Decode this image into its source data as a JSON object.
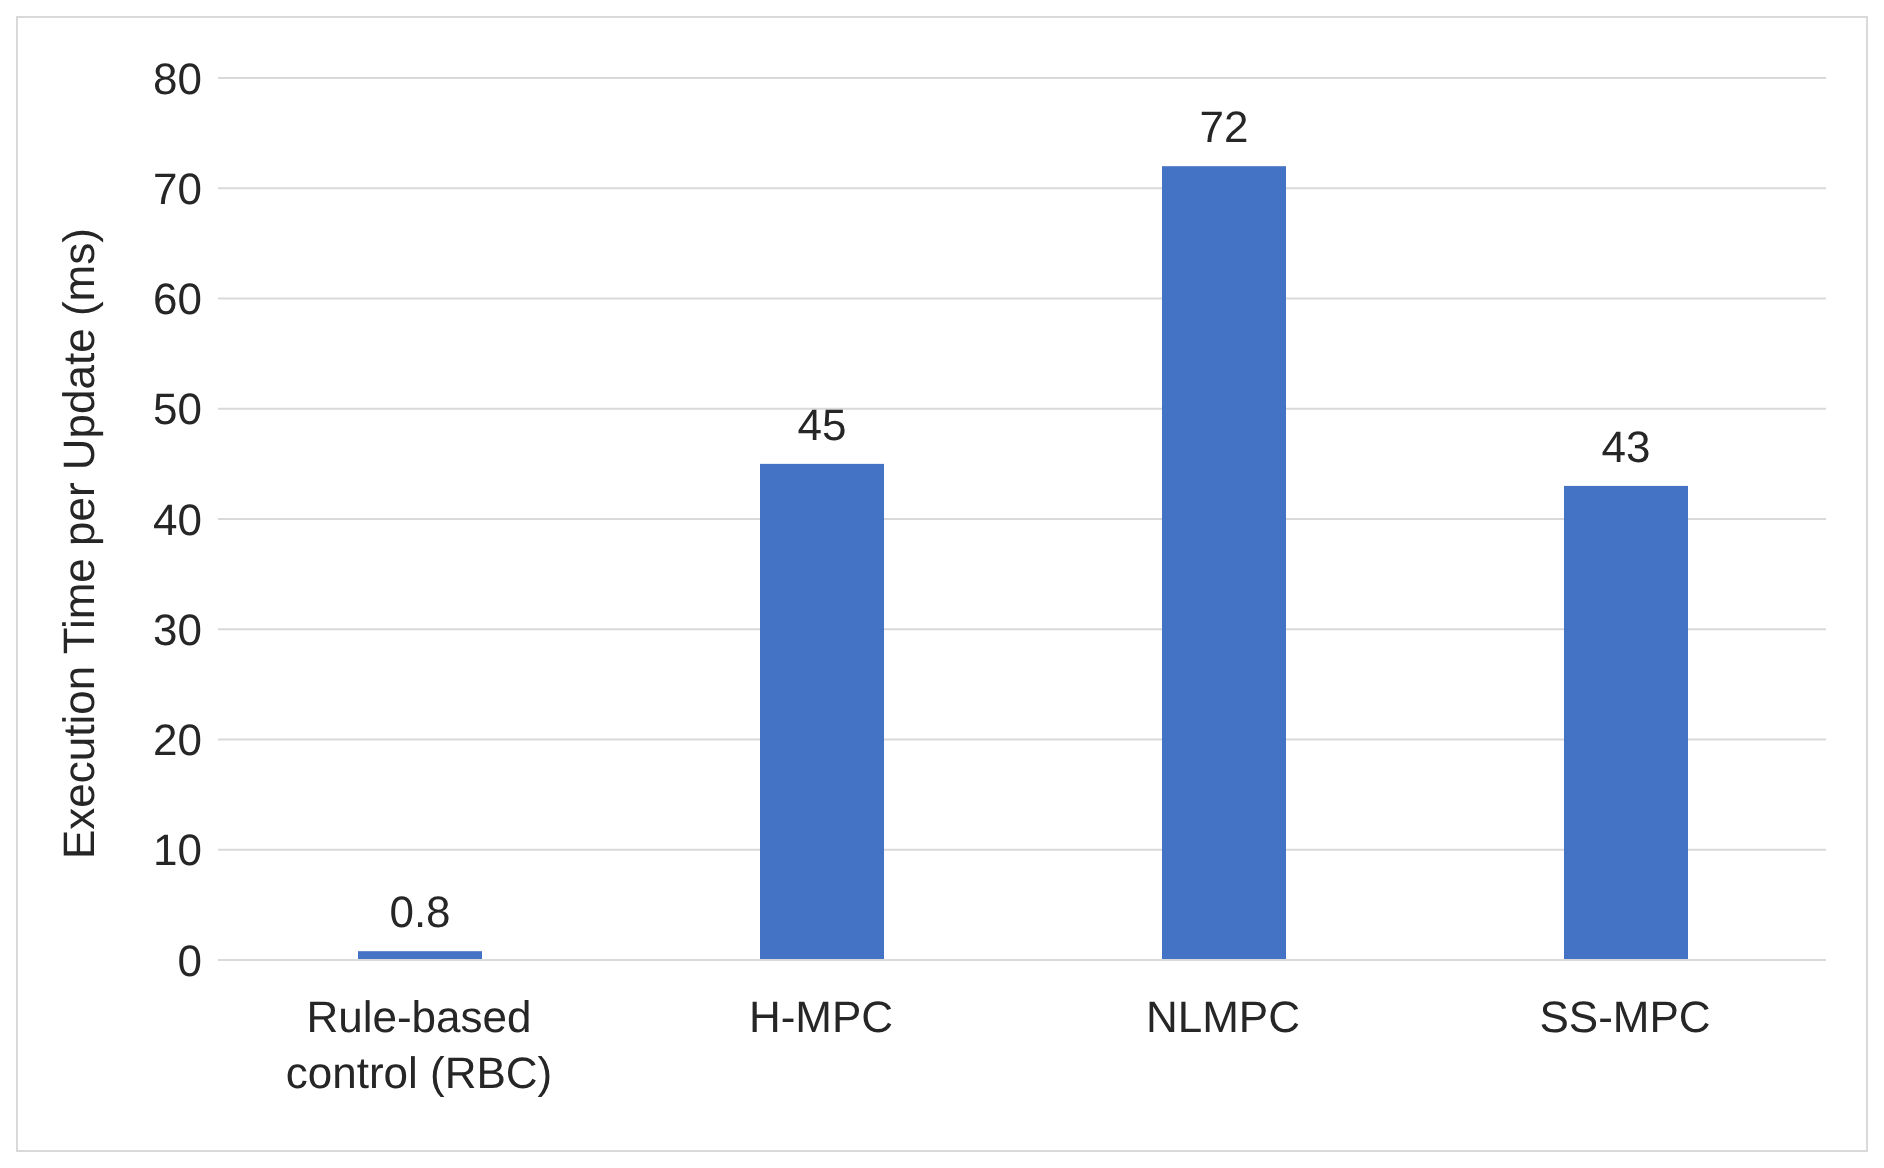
{
  "chart_data": {
    "type": "bar",
    "ylabel": "Execution Time per Update (ms)",
    "categories": [
      "Rule-based control (RBC)",
      "H-MPC",
      "NLMPC",
      "SS-MPC"
    ],
    "values": [
      0.8,
      45,
      72,
      43
    ],
    "color": "#4472c4",
    "ylim": [
      0,
      80
    ],
    "yticks": [
      0,
      10,
      20,
      30,
      40,
      50,
      60,
      70,
      80
    ],
    "grid": "y",
    "data_labels": true
  }
}
